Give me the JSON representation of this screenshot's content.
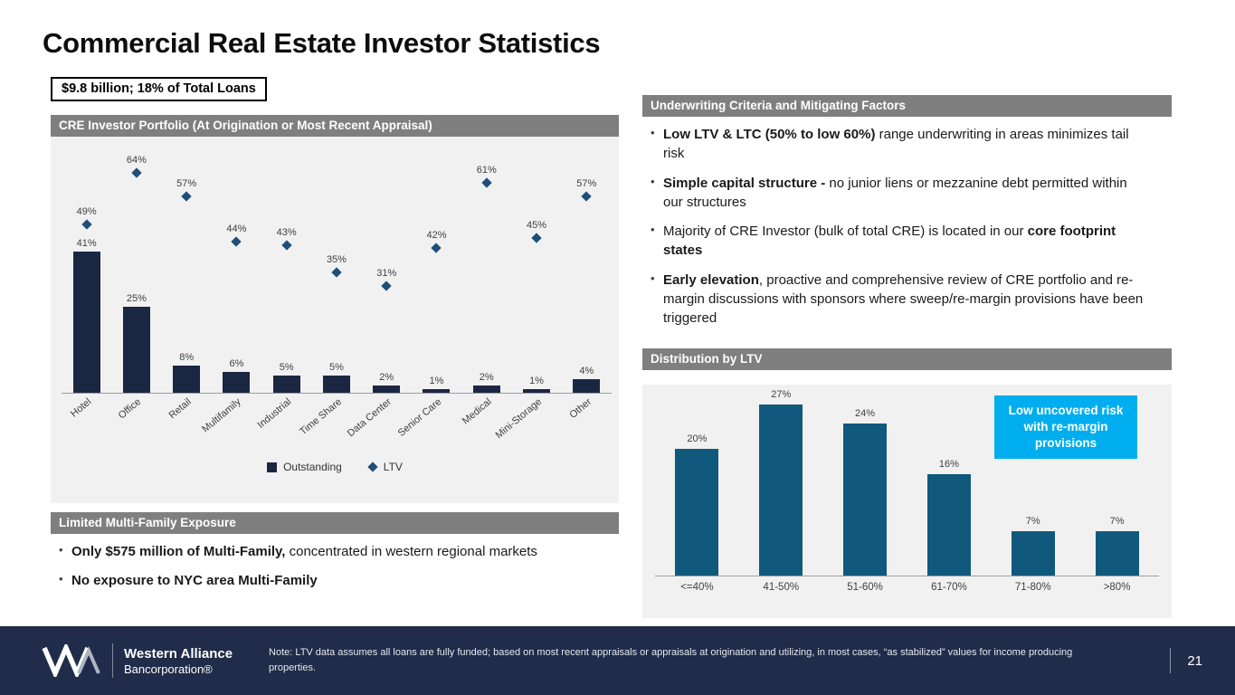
{
  "page": {
    "title": "Commercial Real Estate Investor Statistics",
    "badge": "$9.8 billion; 18% of Total Loans"
  },
  "portfolio_section": {
    "header": "CRE Investor Portfolio (At Origination or Most Recent Appraisal)",
    "legend": {
      "outstanding": "Outstanding",
      "ltv": "LTV"
    }
  },
  "chart_data": [
    {
      "type": "bar",
      "title": "CRE Investor Portfolio (At Origination or Most Recent Appraisal)",
      "categories": [
        "Hotel",
        "Office",
        "Retail",
        "Multifamily",
        "Industrial",
        "Time Share",
        "Data Center",
        "Senior Care",
        "Medical",
        "Mini-Storage",
        "Other"
      ],
      "series": [
        {
          "name": "Outstanding",
          "type": "bar",
          "values": [
            41,
            25,
            8,
            6,
            5,
            5,
            2,
            1,
            2,
            1,
            4
          ]
        },
        {
          "name": "LTV",
          "type": "scatter",
          "values": [
            49,
            64,
            57,
            44,
            43,
            35,
            31,
            42,
            61,
            45,
            57
          ]
        }
      ],
      "value_suffix": "%",
      "ylim": [
        0,
        70
      ],
      "grid": false,
      "legend_position": "bottom"
    },
    {
      "type": "bar",
      "title": "Distribution by LTV",
      "categories": [
        "<=40%",
        "41-50%",
        "51-60%",
        "61-70%",
        "71-80%",
        ">80%"
      ],
      "values": [
        20,
        27,
        24,
        16,
        7,
        7
      ],
      "value_suffix": "%",
      "ylim": [
        0,
        30
      ],
      "grid": false,
      "legend_position": "none"
    }
  ],
  "multifamily_section": {
    "header": "Limited Multi-Family Exposure",
    "bullets": [
      {
        "bold": "Only $575 million of Multi-Family,",
        "rest": " concentrated in western regional markets"
      },
      {
        "bold": "No exposure to NYC area Multi-Family",
        "rest": ""
      }
    ]
  },
  "underwriting_section": {
    "header": "Underwriting Criteria and Mitigating Factors",
    "bullets": [
      {
        "pre": "",
        "bold": "Low LTV & LTC (50% to low 60%)",
        "post": " range underwriting in areas minimizes tail risk"
      },
      {
        "pre": "",
        "bold": "Simple capital structure -",
        "post": " no junior liens or mezzanine debt permitted within our structures"
      },
      {
        "pre": "Majority of CRE Investor (bulk of total CRE) is located in our ",
        "bold": "core footprint states",
        "post": ""
      },
      {
        "pre": "",
        "bold": "Early elevation",
        "post": ", proactive and comprehensive review of CRE portfolio and re-margin discussions with sponsors where sweep/re-margin provisions have been triggered"
      }
    ]
  },
  "ltv_section": {
    "header": "Distribution by LTV",
    "callout": "Low uncovered risk with re-margin provisions"
  },
  "footer": {
    "logo_line1": "Western Alliance",
    "logo_line2": "Bancorporation®",
    "note": "Note: LTV data assumes all loans are fully funded; based on most recent appraisals or appraisals at origination and utilizing, in most cases, “as stabilized” values for income producing properties.",
    "page_number": "21"
  },
  "colors": {
    "header_gray": "#7f7f7f",
    "chart_bg": "#f1f1f1",
    "bar_navy": "#1b2742",
    "ltv_blue": "#1f4e79",
    "dist_bar": "#10597d",
    "callout_cyan": "#00aeef",
    "footer_navy": "#202c49"
  }
}
